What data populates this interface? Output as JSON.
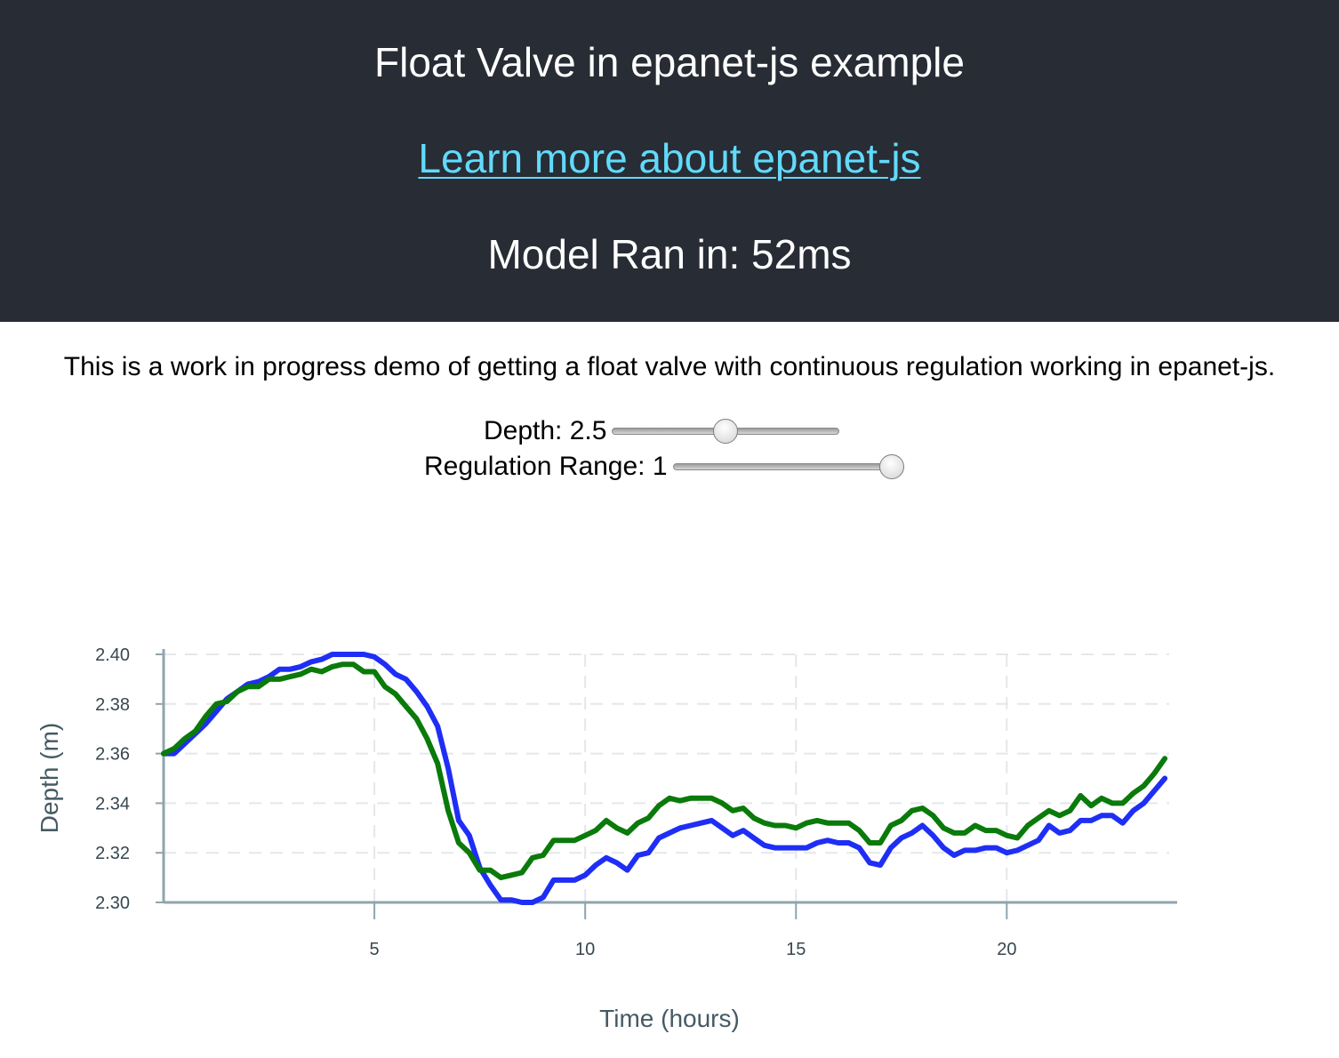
{
  "header": {
    "title": "Float Valve in epanet-js example",
    "link_text": "Learn more about epanet-js",
    "runtime_text": "Model Ran in: 52ms"
  },
  "description": "This is a work in progress demo of getting a float valve with continuous regulation working in epanet-js.",
  "controls": {
    "depth": {
      "label": "Depth: 2.5",
      "value": 2.5,
      "min": 0,
      "max": 5
    },
    "regulation": {
      "label": "Regulation Range: 1",
      "value": 1,
      "min": 0,
      "max": 1
    }
  },
  "colors": {
    "header_bg": "#282c34",
    "link": "#61dafb",
    "series_blue": "#1f2ef5",
    "series_green": "#0a7a0a",
    "axis": "#90a4ae",
    "tick_text": "#37474f"
  },
  "chart_data": {
    "type": "line",
    "title": "",
    "xlabel": "Time (hours)",
    "ylabel": "Depth (m)",
    "xlim": [
      0,
      24
    ],
    "ylim": [
      2.3,
      2.4
    ],
    "xticks": [
      5,
      10,
      15,
      20
    ],
    "yticks": [
      2.3,
      2.32,
      2.34,
      2.36,
      2.38,
      2.4
    ],
    "ytick_labels": [
      "2.30",
      "2.32",
      "2.34",
      "2.36",
      "2.38",
      "2.40"
    ],
    "grid": true,
    "series": [
      {
        "name": "series-blue",
        "color": "#1f2ef5",
        "x": [
          0,
          0.25,
          0.5,
          0.75,
          1,
          1.25,
          1.5,
          1.75,
          2,
          2.25,
          2.5,
          2.75,
          3,
          3.25,
          3.5,
          3.75,
          4,
          4.25,
          4.5,
          4.75,
          5,
          5.25,
          5.5,
          5.75,
          6,
          6.25,
          6.5,
          6.75,
          7,
          7.25,
          7.5,
          7.75,
          8,
          8.25,
          8.5,
          8.75,
          9,
          9.25,
          9.5,
          9.75,
          10,
          10.25,
          10.5,
          10.75,
          11,
          11.25,
          11.5,
          11.75,
          12,
          12.25,
          12.5,
          12.75,
          13,
          13.25,
          13.5,
          13.75,
          14,
          14.25,
          14.5,
          14.75,
          15,
          15.25,
          15.5,
          15.75,
          16,
          16.25,
          16.5,
          16.75,
          17,
          17.25,
          17.5,
          17.75,
          18,
          18.25,
          18.5,
          18.75,
          19,
          19.25,
          19.5,
          19.75,
          20,
          20.25,
          20.5,
          20.75,
          21,
          21.25,
          21.5,
          21.75,
          22,
          22.25,
          22.5,
          22.75,
          23,
          23.25,
          23.5,
          23.75
        ],
        "values": [
          2.36,
          2.36,
          2.364,
          2.368,
          2.372,
          2.377,
          2.382,
          2.385,
          2.388,
          2.389,
          2.391,
          2.394,
          2.394,
          2.395,
          2.397,
          2.398,
          2.4,
          2.4,
          2.4,
          2.4,
          2.399,
          2.396,
          2.392,
          2.39,
          2.385,
          2.379,
          2.371,
          2.354,
          2.333,
          2.327,
          2.314,
          2.307,
          2.301,
          2.301,
          2.3,
          2.3,
          2.302,
          2.309,
          2.309,
          2.309,
          2.311,
          2.315,
          2.318,
          2.316,
          2.313,
          2.319,
          2.32,
          2.326,
          2.328,
          2.33,
          2.331,
          2.332,
          2.333,
          2.33,
          2.327,
          2.329,
          2.326,
          2.323,
          2.322,
          2.322,
          2.322,
          2.322,
          2.324,
          2.325,
          2.324,
          2.324,
          2.322,
          2.316,
          2.315,
          2.322,
          2.326,
          2.328,
          2.331,
          2.327,
          2.322,
          2.319,
          2.321,
          2.321,
          2.322,
          2.322,
          2.32,
          2.321,
          2.323,
          2.325,
          2.331,
          2.328,
          2.329,
          2.333,
          2.333,
          2.335,
          2.335,
          2.332,
          2.337,
          2.34,
          2.345,
          2.35
        ]
      },
      {
        "name": "series-green",
        "color": "#0a7a0a",
        "x": [
          0,
          0.25,
          0.5,
          0.75,
          1,
          1.25,
          1.5,
          1.75,
          2,
          2.25,
          2.5,
          2.75,
          3,
          3.25,
          3.5,
          3.75,
          4,
          4.25,
          4.5,
          4.75,
          5,
          5.25,
          5.5,
          5.75,
          6,
          6.25,
          6.5,
          6.75,
          7,
          7.25,
          7.5,
          7.75,
          8,
          8.25,
          8.5,
          8.75,
          9,
          9.25,
          9.5,
          9.75,
          10,
          10.25,
          10.5,
          10.75,
          11,
          11.25,
          11.5,
          11.75,
          12,
          12.25,
          12.5,
          12.75,
          13,
          13.25,
          13.5,
          13.75,
          14,
          14.25,
          14.5,
          14.75,
          15,
          15.25,
          15.5,
          15.75,
          16,
          16.25,
          16.5,
          16.75,
          17,
          17.25,
          17.5,
          17.75,
          18,
          18.25,
          18.5,
          18.75,
          19,
          19.25,
          19.5,
          19.75,
          20,
          20.25,
          20.5,
          20.75,
          21,
          21.25,
          21.5,
          21.75,
          22,
          22.25,
          22.5,
          22.75,
          23,
          23.25,
          23.5,
          23.75
        ],
        "values": [
          2.36,
          2.362,
          2.366,
          2.369,
          2.375,
          2.38,
          2.381,
          2.385,
          2.387,
          2.387,
          2.39,
          2.39,
          2.391,
          2.392,
          2.394,
          2.393,
          2.395,
          2.396,
          2.396,
          2.393,
          2.393,
          2.387,
          2.384,
          2.379,
          2.374,
          2.366,
          2.356,
          2.337,
          2.324,
          2.32,
          2.313,
          2.313,
          2.31,
          2.311,
          2.312,
          2.318,
          2.319,
          2.325,
          2.325,
          2.325,
          2.327,
          2.329,
          2.333,
          2.33,
          2.328,
          2.332,
          2.334,
          2.339,
          2.342,
          2.341,
          2.342,
          2.342,
          2.342,
          2.34,
          2.337,
          2.338,
          2.334,
          2.332,
          2.331,
          2.331,
          2.33,
          2.332,
          2.333,
          2.332,
          2.332,
          2.332,
          2.329,
          2.324,
          2.324,
          2.331,
          2.333,
          2.337,
          2.338,
          2.335,
          2.33,
          2.328,
          2.328,
          2.331,
          2.329,
          2.329,
          2.327,
          2.326,
          2.331,
          2.334,
          2.337,
          2.335,
          2.337,
          2.343,
          2.339,
          2.342,
          2.34,
          2.34,
          2.344,
          2.347,
          2.352,
          2.358
        ]
      }
    ]
  }
}
